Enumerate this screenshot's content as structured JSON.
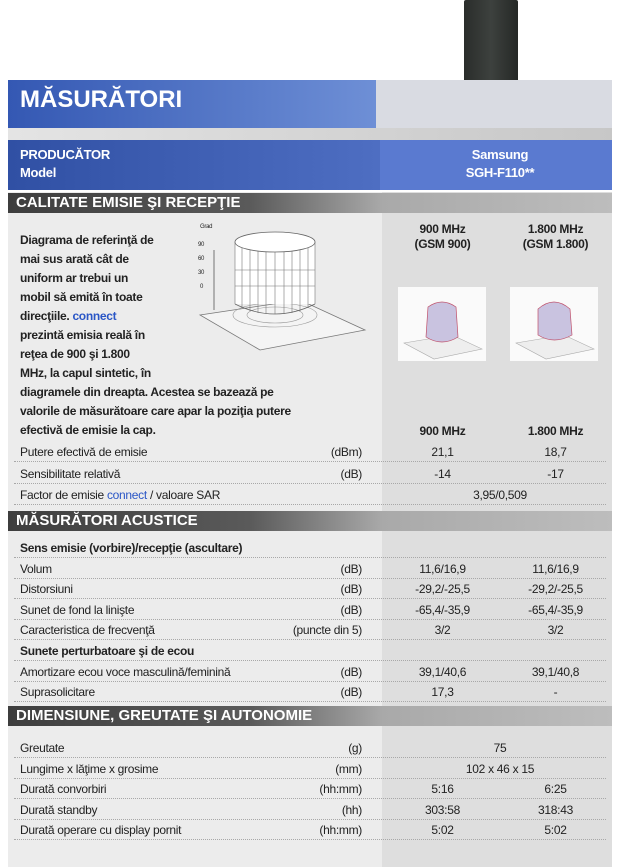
{
  "header": {
    "title": "MĂSURĂTORI"
  },
  "product": {
    "label_1": "PRODUCĂTOR",
    "label_2": "Model",
    "manufacturer": "Samsung",
    "model": "SGH-F110**"
  },
  "sections": [
    {
      "title": "CALITATE EMISIE ŞI RECEPŢIE",
      "description": [
        "Diagrama de referinţă de",
        "mai sus arată cât de",
        "uniform ar trebui un",
        "mobil să emită în toate",
        "direcţiile.",
        "prezintă emisia reală în",
        "reţea de 900 şi 1.800",
        "MHz, la capul sintetic, în",
        "diagramele din dreapta. Acestea se bazează pe",
        "valorile de măsurătoare care apar la poziţia putere",
        "efectivă de emisie la cap."
      ],
      "description_brand": "connect",
      "diagram_labels": [
        "Grad",
        "90",
        "60",
        "30",
        "0"
      ],
      "bands": [
        {
          "name": "900 MHz",
          "network": "(GSM 900)"
        },
        {
          "name": "1.800 MHz",
          "network": "(GSM 1.800)"
        }
      ],
      "column_headers": [
        "900 MHz",
        "1.800 MHz"
      ],
      "rows": [
        {
          "label": "Putere efectivă de emisie",
          "unit": "(dBm)",
          "values": [
            "21,1",
            "18,7"
          ]
        },
        {
          "label": "Sensibilitate relativă",
          "unit": "(dB)",
          "values": [
            "-14",
            "-17"
          ]
        },
        {
          "label": "Factor de emisie",
          "brand": "connect",
          "label_suffix": "/ valoare SAR",
          "value": "3,95/0,509"
        }
      ]
    },
    {
      "title": "MĂSURĂTORI ACUSTICE",
      "rows": [
        {
          "heading": "Sens emisie (vorbire)/recepţie (ascultare)"
        },
        {
          "label": "Volum",
          "unit": "(dB)",
          "values": [
            "11,6/16,9",
            "11,6/16,9"
          ]
        },
        {
          "label": "Distorsiuni",
          "unit": "(dB)",
          "values": [
            "-29,2/-25,5",
            "-29,2/-25,5"
          ]
        },
        {
          "label": "Sunet de fond la linişte",
          "unit": "(dB)",
          "values": [
            "-65,4/-35,9",
            "-65,4/-35,9"
          ]
        },
        {
          "label": "Caracteristica de frecvenţă",
          "unit": "(puncte din 5)",
          "values": [
            "3/2",
            "3/2"
          ]
        },
        {
          "heading": "Sunete perturbatoare şi de ecou"
        },
        {
          "label": "Amortizare ecou voce masculină/feminină",
          "unit": "(dB)",
          "values": [
            "39,1/40,6",
            "39,1/40,8"
          ]
        },
        {
          "label": "Suprasolicitare",
          "unit": "(dB)",
          "values": [
            "17,3",
            "-"
          ]
        }
      ]
    },
    {
      "title": "DIMENSIUNE, GREUTATE ŞI AUTONOMIE",
      "rows": [
        {
          "label": "Greutate",
          "unit": "(g)",
          "value": "75"
        },
        {
          "label": "Lungime x lăţime x grosime",
          "unit": "(mm)",
          "value": "102 x 46 x 15"
        },
        {
          "label": "Durată convorbiri",
          "unit": "(hh:mm)",
          "values": [
            "5:16",
            "6:25"
          ]
        },
        {
          "label": "Durată standby",
          "unit": "(hh)",
          "values": [
            "303:58",
            "318:43"
          ]
        },
        {
          "label": "Durată operare cu display pornit",
          "unit": "(hh:mm)",
          "values": [
            "5:02",
            "5:02"
          ]
        }
      ]
    }
  ]
}
